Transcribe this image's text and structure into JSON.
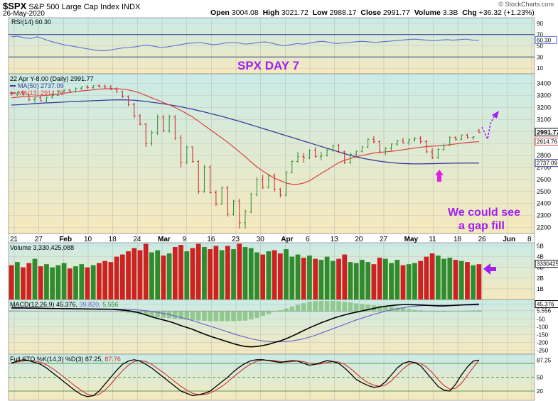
{
  "header": {
    "symbol": "$SPX",
    "name": "S&P 500 Large Cap Index",
    "exchange": "INDX",
    "date": "26-May-2020",
    "open_label": "Open",
    "open": "3004.08",
    "high_label": "High",
    "high": "3021.72",
    "low_label": "Low",
    "low": "2988.17",
    "close_label": "Close",
    "close": "2991.77",
    "volume_label": "Volume",
    "volume": "3.3B",
    "chg_label": "Chg",
    "chg": "+36.32 (+1.23%)",
    "watermark": "© StockCharts.com"
  },
  "annotations": {
    "title": "SPX DAY 7",
    "note_line1": "We could see",
    "note_line2": "a gap fill"
  },
  "colors": {
    "up": "#2e8b2e",
    "down": "#cc2222",
    "ma50": "#3b3b9a",
    "ma13": "#e04040",
    "magenta": "#e020e0",
    "purple": "#a020f0",
    "rsi_line": "#5b6fd6",
    "panel_top": "#c9ebe6",
    "panel_bottom": "#f6e9bd"
  },
  "chart_data": [
    {
      "type": "line",
      "panel": "rsi",
      "legend": "RSI(14) 60.30",
      "current": "60.30",
      "ylim": [
        0,
        100
      ],
      "y_ticks": [
        "90",
        "70",
        "50",
        "30",
        "10"
      ],
      "levels": [
        70,
        30
      ],
      "values": [
        66,
        67,
        64,
        63,
        66,
        62,
        58,
        55,
        52,
        50,
        48,
        46,
        44,
        42,
        41,
        42,
        44,
        46,
        47,
        48,
        50,
        51,
        49,
        47,
        48,
        50,
        52,
        54,
        55,
        56,
        54,
        52,
        53,
        55,
        56,
        55,
        53,
        54,
        56,
        57,
        55,
        52,
        50,
        52,
        54,
        53,
        55,
        57,
        58,
        56,
        54,
        55,
        56,
        57,
        58,
        57,
        56,
        57,
        58,
        59,
        60,
        61,
        62,
        61,
        60,
        59,
        60,
        61,
        60,
        61,
        62,
        60,
        60
      ]
    },
    {
      "type": "candlestick",
      "panel": "price",
      "legend": [
        "22 Apr Y-8.00 (Daily) 2991.77",
        "MA(50) 2737.09",
        "MA(13) 2914.76"
      ],
      "ylim": [
        2150,
        3480
      ],
      "y_ticks": [
        "3400",
        "3300",
        "3200",
        "3100",
        "3000",
        "2900",
        "2800",
        "2700",
        "2600",
        "2500",
        "2400",
        "2300",
        "2200"
      ],
      "x_labels": [
        "21",
        "27",
        "Feb",
        "10",
        "18",
        "24",
        "Mar",
        "9",
        "16",
        "23",
        "30",
        "Apr",
        "6",
        "13",
        "20",
        "27",
        "May",
        "11",
        "18",
        "26",
        "Jun",
        "8"
      ],
      "last_close_label": "2991.77",
      "ma13_label": "2914.76",
      "ma50_label": "2737.09",
      "candles": [
        [
          3320,
          3335,
          3300,
          3310
        ],
        [
          3310,
          3330,
          3295,
          3325
        ],
        [
          3325,
          3340,
          3300,
          3305
        ],
        [
          3305,
          3315,
          3250,
          3265
        ],
        [
          3265,
          3285,
          3240,
          3280
        ],
        [
          3280,
          3295,
          3250,
          3255
        ],
        [
          3255,
          3290,
          3245,
          3285
        ],
        [
          3285,
          3310,
          3275,
          3300
        ],
        [
          3300,
          3340,
          3295,
          3335
        ],
        [
          3335,
          3350,
          3320,
          3345
        ],
        [
          3345,
          3355,
          3325,
          3330
        ],
        [
          3330,
          3365,
          3325,
          3360
        ],
        [
          3360,
          3375,
          3345,
          3370
        ],
        [
          3370,
          3385,
          3355,
          3365
        ],
        [
          3365,
          3385,
          3355,
          3380
        ],
        [
          3380,
          3395,
          3365,
          3375
        ],
        [
          3375,
          3390,
          3355,
          3370
        ],
        [
          3370,
          3385,
          3345,
          3350
        ],
        [
          3350,
          3370,
          3320,
          3330
        ],
        [
          3330,
          3340,
          3280,
          3290
        ],
        [
          3290,
          3300,
          3210,
          3225
        ],
        [
          3225,
          3240,
          3110,
          3130
        ],
        [
          3130,
          3145,
          3050,
          3060
        ],
        [
          3060,
          3070,
          2870,
          2900
        ],
        [
          2900,
          3010,
          2880,
          2990
        ],
        [
          2990,
          3140,
          2970,
          3120
        ],
        [
          3120,
          3135,
          2995,
          3005
        ],
        [
          3005,
          3140,
          2990,
          3120
        ],
        [
          3120,
          3135,
          2930,
          2945
        ],
        [
          2945,
          2970,
          2700,
          2740
        ],
        [
          2740,
          2880,
          2730,
          2870
        ],
        [
          2870,
          2875,
          2740,
          2750
        ],
        [
          2750,
          2760,
          2480,
          2500
        ],
        [
          2500,
          2720,
          2490,
          2700
        ],
        [
          2700,
          2720,
          2480,
          2490
        ],
        [
          2490,
          2510,
          2380,
          2395
        ],
        [
          2395,
          2540,
          2390,
          2530
        ],
        [
          2530,
          2545,
          2290,
          2310
        ],
        [
          2310,
          2430,
          2300,
          2420
        ],
        [
          2420,
          2440,
          2190,
          2240
        ],
        [
          2240,
          2350,
          2190,
          2330
        ],
        [
          2330,
          2490,
          2320,
          2475
        ],
        [
          2475,
          2620,
          2460,
          2600
        ],
        [
          2600,
          2640,
          2520,
          2535
        ],
        [
          2535,
          2645,
          2525,
          2630
        ],
        [
          2630,
          2650,
          2500,
          2520
        ],
        [
          2520,
          2530,
          2450,
          2470
        ],
        [
          2470,
          2670,
          2460,
          2660
        ],
        [
          2660,
          2760,
          2650,
          2750
        ],
        [
          2750,
          2830,
          2740,
          2790
        ],
        [
          2790,
          2820,
          2740,
          2780
        ],
        [
          2780,
          2850,
          2770,
          2845
        ],
        [
          2845,
          2870,
          2780,
          2790
        ],
        [
          2790,
          2830,
          2760,
          2800
        ],
        [
          2800,
          2860,
          2790,
          2845
        ],
        [
          2845,
          2890,
          2830,
          2880
        ],
        [
          2880,
          2895,
          2820,
          2830
        ],
        [
          2830,
          2840,
          2730,
          2740
        ],
        [
          2740,
          2820,
          2730,
          2810
        ],
        [
          2810,
          2840,
          2780,
          2835
        ],
        [
          2835,
          2880,
          2825,
          2870
        ],
        [
          2870,
          2945,
          2860,
          2935
        ],
        [
          2935,
          2960,
          2900,
          2915
        ],
        [
          2915,
          2925,
          2820,
          2830
        ],
        [
          2830,
          2870,
          2800,
          2860
        ],
        [
          2860,
          2900,
          2840,
          2895
        ],
        [
          2895,
          2930,
          2880,
          2925
        ],
        [
          2925,
          2945,
          2900,
          2905
        ],
        [
          2905,
          2940,
          2890,
          2930
        ],
        [
          2930,
          2955,
          2915,
          2940
        ],
        [
          2940,
          2960,
          2900,
          2915
        ],
        [
          2915,
          2930,
          2820,
          2830
        ],
        [
          2830,
          2860,
          2770,
          2780
        ],
        [
          2780,
          2860,
          2770,
          2850
        ],
        [
          2850,
          2900,
          2840,
          2885
        ],
        [
          2885,
          2960,
          2880,
          2950
        ],
        [
          2950,
          2960,
          2920,
          2935
        ],
        [
          2935,
          2975,
          2925,
          2970
        ],
        [
          2970,
          2980,
          2940,
          2950
        ],
        [
          2950,
          2960,
          2930,
          2955
        ],
        [
          3004,
          3021,
          2988,
          2991
        ]
      ],
      "ma50": [
        3220,
        3222,
        3225,
        3228,
        3232,
        3235,
        3238,
        3240,
        3242,
        3245,
        3248,
        3250,
        3252,
        3254,
        3256,
        3258,
        3260,
        3262,
        3263,
        3263,
        3262,
        3260,
        3255,
        3250,
        3243,
        3237,
        3230,
        3222,
        3214,
        3205,
        3195,
        3185,
        3173,
        3162,
        3150,
        3138,
        3125,
        3112,
        3098,
        3085,
        3070,
        3055,
        3040,
        3025,
        3010,
        2995,
        2980,
        2965,
        2950,
        2935,
        2920,
        2905,
        2890,
        2875,
        2860,
        2845,
        2830,
        2815,
        2800,
        2788,
        2778,
        2768,
        2760,
        2752,
        2746,
        2740,
        2736,
        2733,
        2731,
        2730,
        2730,
        2731,
        2732,
        2733,
        2734,
        2735,
        2736,
        2736,
        2737,
        2737,
        2737
      ],
      "ma13": [
        3280,
        3285,
        3290,
        3292,
        3295,
        3298,
        3300,
        3305,
        3310,
        3318,
        3325,
        3332,
        3338,
        3342,
        3347,
        3352,
        3355,
        3357,
        3356,
        3352,
        3346,
        3335,
        3320,
        3300,
        3280,
        3260,
        3240,
        3222,
        3200,
        3175,
        3148,
        3120,
        3085,
        3050,
        3015,
        2980,
        2945,
        2910,
        2870,
        2830,
        2790,
        2745,
        2705,
        2670,
        2640,
        2610,
        2590,
        2570,
        2560,
        2560,
        2570,
        2590,
        2620,
        2650,
        2680,
        2710,
        2740,
        2760,
        2775,
        2790,
        2800,
        2810,
        2820,
        2825,
        2830,
        2835,
        2840,
        2848,
        2855,
        2862,
        2868,
        2874,
        2878,
        2880,
        2884,
        2890,
        2896,
        2902,
        2908,
        2912,
        2915
      ]
    },
    {
      "type": "bar",
      "panel": "volume",
      "legend": "Volume 3,330,425,088",
      "ylim": [
        0,
        5.3
      ],
      "y_ticks": [
        "5B",
        "4B",
        "3B",
        "2B",
        "1B"
      ],
      "current_label": "3330425",
      "values_billions": [
        3.2,
        3.5,
        3.0,
        3.4,
        3.8,
        3.1,
        3.3,
        3.0,
        3.2,
        3.4,
        2.9,
        3.1,
        3.3,
        3.0,
        3.2,
        3.4,
        3.6,
        3.5,
        4.0,
        4.2,
        4.5,
        4.8,
        4.6,
        5.2,
        4.4,
        4.6,
        4.1,
        4.3,
        4.9,
        5.1,
        4.5,
        4.8,
        5.2,
        4.9,
        4.7,
        5.0,
        4.6,
        5.0,
        4.7,
        5.2,
        4.9,
        4.8,
        4.4,
        4.2,
        4.5,
        4.6,
        4.3,
        4.7,
        4.0,
        4.2,
        3.9,
        4.1,
        3.8,
        3.7,
        4.0,
        3.6,
        3.8,
        4.2,
        3.5,
        3.4,
        3.7,
        3.5,
        3.3,
        3.9,
        3.8,
        3.4,
        3.7,
        3.2,
        3.3,
        3.4,
        3.6,
        4.0,
        4.3,
        4.1,
        3.8,
        3.9,
        3.7,
        3.6,
        3.5,
        3.2,
        3.3
      ]
    },
    {
      "type": "line",
      "panel": "macd",
      "legend": [
        "MACD(12,26,9)",
        "45.376,",
        "39.820,",
        "5.556"
      ],
      "ylim": [
        -275,
        75
      ],
      "y_ticks": [
        "45.376",
        "5.556",
        "-50",
        "-100",
        "-150",
        "-200",
        "-250"
      ],
      "macd": [
        22,
        22,
        21,
        20,
        20,
        19,
        18,
        17,
        17,
        16,
        16,
        15,
        15,
        14,
        14,
        13,
        13,
        12,
        10,
        7,
        3,
        -3,
        -12,
        -24,
        -36,
        -46,
        -56,
        -66,
        -78,
        -92,
        -104,
        -116,
        -132,
        -146,
        -160,
        -172,
        -184,
        -196,
        -208,
        -218,
        -226,
        -228,
        -226,
        -220,
        -212,
        -200,
        -190,
        -176,
        -160,
        -142,
        -124,
        -106,
        -90,
        -74,
        -60,
        -46,
        -34,
        -24,
        -14,
        -6,
        2,
        10,
        18,
        26,
        32,
        36,
        40,
        42,
        42,
        41,
        40,
        38,
        36,
        34,
        34,
        36,
        38,
        40,
        42,
        44,
        45
      ],
      "signal": [
        18,
        18,
        18,
        18,
        18,
        18,
        18,
        18,
        17,
        17,
        17,
        16,
        16,
        16,
        15,
        15,
        15,
        14,
        14,
        13,
        12,
        10,
        7,
        3,
        -2,
        -8,
        -14,
        -22,
        -30,
        -40,
        -50,
        -60,
        -72,
        -84,
        -96,
        -108,
        -120,
        -132,
        -144,
        -156,
        -166,
        -176,
        -184,
        -190,
        -194,
        -196,
        -196,
        -194,
        -190,
        -184,
        -176,
        -166,
        -154,
        -140,
        -126,
        -112,
        -98,
        -84,
        -70,
        -56,
        -44,
        -32,
        -20,
        -10,
        0,
        8,
        16,
        22,
        28,
        32,
        35,
        37,
        38,
        38,
        38,
        38,
        38,
        39,
        39,
        40,
        40
      ]
    },
    {
      "type": "line",
      "panel": "sto",
      "legend": [
        "Full STO %K(14,3) %D(3)",
        "87.25,",
        "87.76"
      ],
      "ylim": [
        0,
        100
      ],
      "y_ticks": [
        "87.25",
        "50",
        "20"
      ],
      "levels": [
        80,
        50,
        20
      ],
      "k": [
        80,
        85,
        88,
        86,
        82,
        78,
        70,
        60,
        50,
        40,
        30,
        20,
        12,
        8,
        10,
        20,
        35,
        50,
        65,
        78,
        85,
        88,
        85,
        78,
        70,
        60,
        50,
        40,
        30,
        20,
        15,
        10,
        12,
        15,
        20,
        30,
        40,
        50,
        62,
        72,
        80,
        86,
        88,
        88,
        86,
        84,
        82,
        84,
        86,
        85,
        80,
        76,
        78,
        82,
        86,
        84,
        80,
        70,
        58,
        45,
        38,
        32,
        28,
        30,
        40,
        55,
        70,
        80,
        84,
        82,
        75,
        60,
        45,
        30,
        22,
        20,
        35,
        55,
        72,
        85,
        87
      ],
      "d": [
        82,
        83,
        85,
        86,
        85,
        82,
        77,
        69,
        60,
        50,
        40,
        30,
        21,
        13,
        10,
        13,
        22,
        35,
        50,
        64,
        76,
        84,
        86,
        84,
        78,
        69,
        60,
        50,
        40,
        30,
        22,
        15,
        12,
        12,
        16,
        22,
        30,
        40,
        51,
        61,
        71,
        79,
        85,
        87,
        87,
        86,
        84,
        83,
        84,
        85,
        84,
        80,
        78,
        79,
        82,
        84,
        83,
        78,
        69,
        58,
        47,
        38,
        33,
        30,
        33,
        42,
        55,
        68,
        78,
        82,
        80,
        72,
        60,
        45,
        32,
        24,
        26,
        37,
        54,
        71,
        87
      ]
    }
  ]
}
